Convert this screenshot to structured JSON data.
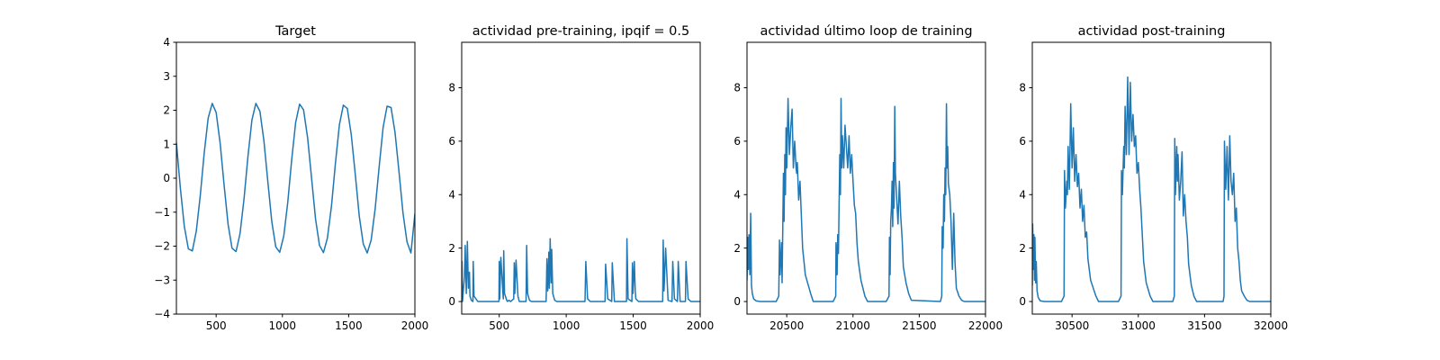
{
  "chart_data": [
    {
      "type": "line",
      "title": "Target",
      "xlim": [
        200,
        2000
      ],
      "ylim": [
        -4,
        4
      ],
      "xticks": [
        "500",
        "1000",
        "1500",
        "2000"
      ],
      "yticks": [
        "4",
        "3",
        "2",
        "1",
        "0",
        "−1",
        "−2",
        "−3",
        "−4"
      ],
      "series": [
        {
          "color": "#1f77b4",
          "x": [
            200,
            230,
            260,
            290,
            320,
            350,
            380,
            410,
            440,
            470,
            500,
            530,
            560,
            590,
            620,
            650,
            680,
            710,
            740,
            770,
            800,
            830,
            860,
            890,
            920,
            950,
            980,
            1010,
            1040,
            1070,
            1100,
            1130,
            1160,
            1190,
            1220,
            1250,
            1280,
            1310,
            1340,
            1370,
            1400,
            1430,
            1460,
            1490,
            1520,
            1550,
            1580,
            1610,
            1640,
            1670,
            1700,
            1730,
            1760,
            1790,
            1820,
            1850,
            1880,
            1910,
            1940,
            1970,
            2000
          ],
          "y": [
            1.05,
            -0.29,
            -1.42,
            -2.08,
            -2.14,
            -1.56,
            -0.52,
            0.74,
            1.77,
            2.2,
            1.93,
            1.03,
            -0.2,
            -1.35,
            -2.06,
            -2.16,
            -1.63,
            -0.62,
            0.64,
            1.71,
            2.2,
            1.97,
            1.11,
            -0.1,
            -1.28,
            -2.02,
            -2.18,
            -1.7,
            -0.72,
            0.54,
            1.64,
            2.18,
            2.01,
            1.19,
            0.0,
            -1.2,
            -1.98,
            -2.19,
            -1.76,
            -0.82,
            0.44,
            1.57,
            2.15,
            2.05,
            1.28,
            0.1,
            -1.12,
            -1.93,
            -2.2,
            -1.82,
            -0.91,
            0.34,
            1.5,
            2.12,
            2.08,
            1.35,
            0.2,
            -1.03,
            -1.87,
            -2.2,
            -1.05
          ]
        }
      ]
    },
    {
      "type": "line",
      "title": "actividad pre-training, ipqif = 0.5",
      "xlim": [
        220,
        2000
      ],
      "ylim": [
        -0.47,
        9.7
      ],
      "xticks": [
        "500",
        "1000",
        "1500",
        "2000"
      ],
      "yticks": [
        "0",
        "2",
        "4",
        "6",
        "8"
      ],
      "series": [
        {
          "color": "#1f77b4",
          "x": [
            220,
            222,
            226,
            240,
            246,
            254,
            262,
            270,
            278,
            282,
            292,
            304,
            306,
            312,
            340,
            498,
            500,
            504,
            512,
            530,
            534,
            540,
            556,
            562,
            572,
            585,
            608,
            612,
            616,
            626,
            640,
            650,
            700,
            705,
            712,
            726,
            740,
            850,
            856,
            862,
            870,
            874,
            880,
            888,
            892,
            900,
            914,
            930,
            1140,
            1146,
            1160,
            1180,
            1290,
            1294,
            1310,
            1340,
            1344,
            1360,
            1450,
            1453,
            1462,
            1490,
            1494,
            1498,
            1508,
            1515,
            1520,
            1540,
            1720,
            1724,
            1730,
            1742,
            1760,
            1790,
            1795,
            1808,
            1830,
            1836,
            1850,
            1890,
            1894,
            1910,
            1930,
            2000
          ],
          "y": [
            0,
            1.5,
            0,
            0.9,
            2.1,
            0.3,
            2.25,
            0.5,
            1.1,
            0.2,
            0.05,
            0,
            1.5,
            0.2,
            0,
            0,
            1.5,
            0.1,
            1.65,
            0.1,
            1.9,
            0.3,
            0.05,
            0,
            0.05,
            0,
            0.1,
            1.45,
            0.3,
            1.55,
            0.2,
            0,
            0,
            2.1,
            0.3,
            0.05,
            0,
            0,
            1.6,
            0.4,
            1.85,
            0.5,
            2.35,
            0.7,
            1.95,
            0.3,
            0.05,
            0,
            0,
            1.5,
            0.1,
            0,
            0,
            1.4,
            0.1,
            0,
            1.45,
            0,
            0,
            2.35,
            0.1,
            0,
            1.45,
            0.3,
            1.5,
            0.4,
            0.1,
            0,
            0,
            2.3,
            0.4,
            2.0,
            0.05,
            0,
            1.5,
            0.1,
            0,
            1.5,
            0,
            0,
            1.5,
            0.1,
            0,
            0
          ]
        }
      ]
    },
    {
      "type": "line",
      "title": "actividad último loop de training",
      "xlim": [
        20200,
        22000
      ],
      "ylim": [
        -0.47,
        9.7
      ],
      "xticks": [
        "20500",
        "21000",
        "21500",
        "22000"
      ],
      "yticks": [
        "0",
        "2",
        "4",
        "6",
        "8"
      ],
      "series": [
        {
          "color": "#1f77b4",
          "x": [
            20200,
            20205,
            20210,
            20215,
            20222,
            20228,
            20234,
            20240,
            20250,
            20270,
            20300,
            20420,
            20440,
            20445,
            20450,
            20460,
            20465,
            20475,
            20480,
            20485,
            20490,
            20495,
            20500,
            20510,
            20520,
            20530,
            20540,
            20550,
            20560,
            20570,
            20575,
            20580,
            20590,
            20600,
            20610,
            20620,
            20640,
            20680,
            20700,
            20850,
            20870,
            20872,
            20880,
            20885,
            20890,
            20900,
            20905,
            20910,
            20915,
            20920,
            20930,
            20940,
            20950,
            20960,
            20970,
            20980,
            20990,
            21000,
            21010,
            21020,
            21030,
            21040,
            21060,
            21090,
            21110,
            21250,
            21272,
            21275,
            21280,
            21285,
            21290,
            21295,
            21300,
            21305,
            21310,
            21315,
            21320,
            21330,
            21340,
            21350,
            21360,
            21370,
            21380,
            21400,
            21420,
            21440,
            21660,
            21670,
            21673,
            21680,
            21685,
            21690,
            21695,
            21700,
            21705,
            21710,
            21715,
            21720,
            21730,
            21740,
            21750,
            21760,
            21770,
            21780,
            21800,
            21820,
            21840,
            22000
          ],
          "y": [
            0.8,
            2.4,
            1.2,
            2.5,
            1.0,
            3.3,
            0.6,
            0.3,
            0.1,
            0.02,
            0,
            0,
            0.2,
            2.3,
            1.0,
            2.2,
            0.7,
            4.8,
            3.0,
            5.5,
            4.0,
            6.5,
            5.0,
            7.6,
            5.5,
            6.5,
            7.2,
            5.0,
            6.0,
            5.0,
            4.8,
            5.2,
            3.8,
            4.5,
            3.2,
            2.0,
            1.0,
            0.3,
            0,
            0,
            0.2,
            2.2,
            1.0,
            2.5,
            1.8,
            5.5,
            4.0,
            7.6,
            5.0,
            6.2,
            5.0,
            6.6,
            5.8,
            5.0,
            6.2,
            4.8,
            5.5,
            4.5,
            3.6,
            3.3,
            2.2,
            1.5,
            0.8,
            0.2,
            0,
            0,
            0.2,
            2.4,
            1.0,
            3.0,
            3.5,
            4.5,
            2.8,
            5.2,
            3.5,
            7.3,
            4.8,
            3.8,
            2.9,
            4.5,
            3.2,
            2.4,
            1.3,
            0.7,
            0.3,
            0.05,
            0,
            0.2,
            2.8,
            2.0,
            4.0,
            3.0,
            5.0,
            4.0,
            7.4,
            5.0,
            5.8,
            4.4,
            4.0,
            3.0,
            1.2,
            3.3,
            1.5,
            0.5,
            0.2,
            0.05,
            0,
            0
          ]
        }
      ]
    },
    {
      "type": "line",
      "title": "actividad post-training",
      "xlim": [
        30200,
        32000
      ],
      "ylim": [
        -0.47,
        9.7
      ],
      "xticks": [
        "30500",
        "31000",
        "31500",
        "32000"
      ],
      "yticks": [
        "0",
        "2",
        "4",
        "6",
        "8"
      ],
      "series": [
        {
          "color": "#1f77b4",
          "x": [
            30200,
            30203,
            30208,
            30212,
            30216,
            30220,
            30225,
            30230,
            30236,
            30245,
            30260,
            30290,
            30420,
            30440,
            30443,
            30450,
            30460,
            30465,
            30470,
            30480,
            30490,
            30500,
            30510,
            30520,
            30530,
            30540,
            30550,
            30560,
            30570,
            30580,
            30590,
            30600,
            30610,
            30620,
            30640,
            30680,
            30700,
            30850,
            30870,
            30873,
            30880,
            30890,
            30895,
            30900,
            30910,
            30920,
            30930,
            30940,
            30950,
            30960,
            30970,
            30980,
            30990,
            31000,
            31010,
            31020,
            31030,
            31040,
            31060,
            31090,
            31110,
            31260,
            31272,
            31275,
            31280,
            31290,
            31295,
            31300,
            31310,
            31320,
            31330,
            31340,
            31350,
            31360,
            31370,
            31380,
            31400,
            31420,
            31440,
            31640,
            31647,
            31650,
            31660,
            31670,
            31680,
            31690,
            31700,
            31710,
            31720,
            31730,
            31740,
            31750,
            31760,
            31770,
            31780,
            31800,
            31820,
            31840,
            32000
          ],
          "y": [
            0.6,
            2.9,
            1.2,
            2.5,
            0.8,
            2.4,
            0.7,
            1.5,
            0.4,
            0.15,
            0.03,
            0,
            0,
            0.2,
            4.9,
            3.5,
            4.5,
            4.0,
            5.8,
            4.2,
            7.4,
            5.0,
            6.5,
            4.5,
            5.5,
            4.3,
            4.8,
            3.5,
            4.2,
            3.0,
            3.6,
            2.4,
            2.6,
            1.6,
            0.8,
            0.2,
            0,
            0,
            0.2,
            4.9,
            4.0,
            5.8,
            5.0,
            7.3,
            5.5,
            8.4,
            5.5,
            8.2,
            6.0,
            7.0,
            5.8,
            6.2,
            4.8,
            5.2,
            4.2,
            3.5,
            2.5,
            1.5,
            0.7,
            0.2,
            0,
            0,
            0.2,
            6.1,
            4.0,
            5.8,
            4.5,
            5.5,
            3.8,
            4.5,
            5.6,
            3.2,
            4.0,
            3.0,
            2.4,
            1.4,
            0.6,
            0.2,
            0,
            0,
            0.2,
            6.0,
            4.2,
            5.8,
            3.8,
            6.2,
            4.5,
            4.0,
            4.8,
            3.0,
            3.5,
            2.0,
            1.5,
            0.8,
            0.4,
            0.2,
            0.05,
            0,
            0
          ]
        }
      ]
    }
  ]
}
